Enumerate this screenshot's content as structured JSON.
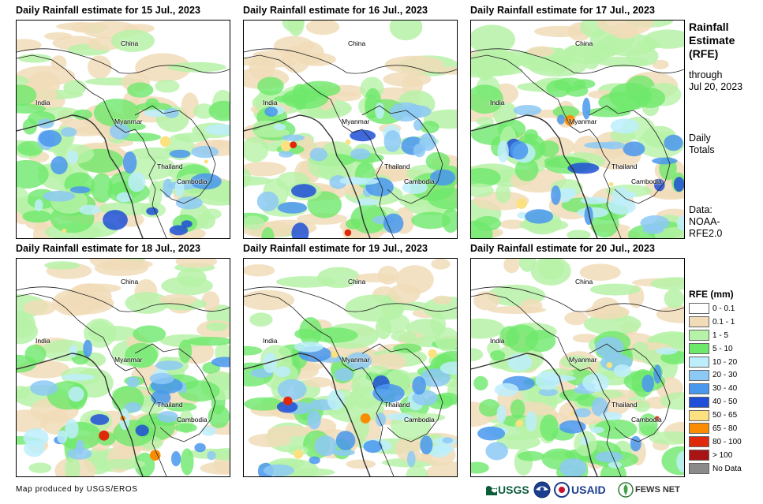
{
  "panels": [
    {
      "title": "Daily Rainfall estimate for 15 Jul., 2023",
      "intensity": 0.45
    },
    {
      "title": "Daily Rainfall estimate for 16 Jul., 2023",
      "intensity": 0.6
    },
    {
      "title": "Daily Rainfall estimate for 17 Jul., 2023",
      "intensity": 0.55
    },
    {
      "title": "Daily Rainfall estimate for 18 Jul., 2023",
      "intensity": 0.5
    },
    {
      "title": "Daily Rainfall estimate for 19 Jul., 2023",
      "intensity": 0.85
    },
    {
      "title": "Daily Rainfall estimate for 20 Jul., 2023",
      "intensity": 0.6
    }
  ],
  "country_labels": [
    "China",
    "India",
    "Myanmar",
    "Thailand",
    "Cambodia"
  ],
  "side": {
    "title_line1": "Rainfall",
    "title_line2": "Estimate",
    "title_line3": "(RFE)",
    "through_line1": "through",
    "through_line2": "Jul 20, 2023",
    "daily_line1": "Daily",
    "daily_line2": "Totals",
    "source_line1": "Data:",
    "source_line2": "NOAA-",
    "source_line3": "RFE2.0"
  },
  "legend": {
    "title": "RFE (mm)",
    "items": [
      {
        "label": "0 - 0.1",
        "color": "#ffffff"
      },
      {
        "label": "0.1 - 1",
        "color": "#f1dcb8"
      },
      {
        "label": "1 - 5",
        "color": "#b6f2a7"
      },
      {
        "label": "5 - 10",
        "color": "#6ee86b"
      },
      {
        "label": "10 - 20",
        "color": "#bdeefc"
      },
      {
        "label": "20 - 30",
        "color": "#8dc9f5"
      },
      {
        "label": "30 - 40",
        "color": "#4a97ee"
      },
      {
        "label": "40 - 50",
        "color": "#1f4fd6"
      },
      {
        "label": "50 - 65",
        "color": "#fce181"
      },
      {
        "label": "65 - 80",
        "color": "#f98c00"
      },
      {
        "label": "80 - 100",
        "color": "#e0280a"
      },
      {
        "label": "> 100",
        "color": "#a81414"
      },
      {
        "label": "No Data",
        "color": "#8a8a8a"
      }
    ]
  },
  "credit": "Map produced by USGS/EROS",
  "logos": {
    "usgs": "USGS",
    "usaid": "USAID",
    "fewsnet": "FEWS NET"
  }
}
